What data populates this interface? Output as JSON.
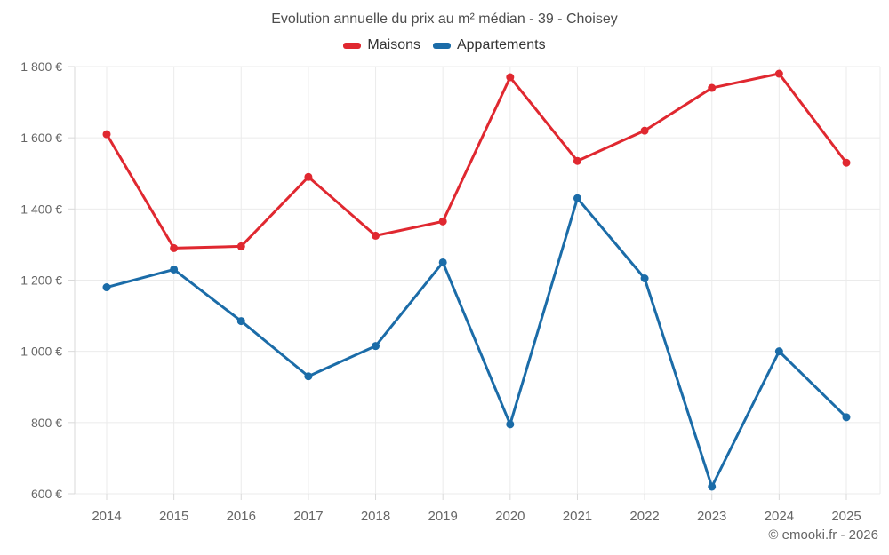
{
  "title": "Evolution annuelle du prix au m² médian - 39 - Choisey",
  "footer": "© emooki.fr - 2026",
  "legend": [
    {
      "label": "Maisons",
      "color": "#e02830"
    },
    {
      "label": "Appartements",
      "color": "#1b6ca8"
    }
  ],
  "chart_data": {
    "type": "line",
    "title": "Evolution annuelle du prix au m² médian - 39 - Choisey",
    "categories": [
      "2014",
      "2015",
      "2016",
      "2017",
      "2018",
      "2019",
      "2020",
      "2021",
      "2022",
      "2023",
      "2024",
      "2025"
    ],
    "series": [
      {
        "name": "Maisons",
        "color": "#e02830",
        "values": [
          1610,
          1290,
          1295,
          1490,
          1325,
          1365,
          1770,
          1535,
          1620,
          1740,
          1780,
          1530
        ]
      },
      {
        "name": "Appartements",
        "color": "#1b6ca8",
        "values": [
          1180,
          1230,
          1085,
          930,
          1015,
          1250,
          795,
          1430,
          1205,
          620,
          1000,
          815
        ]
      }
    ],
    "ylim": [
      600,
      1800
    ],
    "ytick_step": 200,
    "ytick_labels": [
      "600 €",
      "800 €",
      "1 000 €",
      "1 200 €",
      "1 400 €",
      "1 600 €",
      "1 800 €"
    ],
    "xlabel": "",
    "ylabel": "",
    "grid": true,
    "legend_position": "top",
    "marker": "circle"
  },
  "colors": {
    "background": "#ffffff",
    "gridline": "#ebebeb",
    "axis": "#d9d9d9",
    "tick_label": "#666666",
    "title_text": "#4d4d4d",
    "legend_text": "#333333",
    "footer_text": "#666666"
  }
}
